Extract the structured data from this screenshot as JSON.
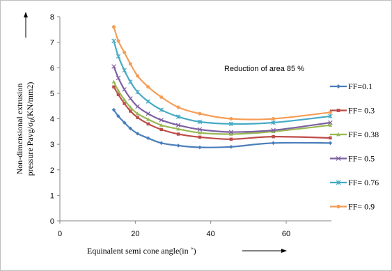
{
  "chart_data": {
    "type": "line",
    "annotation": "Reduction of area 85 %",
    "xlabel": "Equinalent semi cone angle(in ˚)",
    "ylabel_line1": "Non-dimensional extrusion",
    "ylabel_line2": "pressure Pavg/σ",
    "ylabel_sub": "0",
    "ylabel_tail": "(KN/mm2)",
    "xlim": [
      0,
      72
    ],
    "ylim": [
      0,
      8
    ],
    "xticks": [
      0,
      20,
      40,
      60
    ],
    "yticks": [
      0,
      1,
      2,
      3,
      4,
      5,
      6,
      7,
      8
    ],
    "grid": false,
    "legend_position": "right",
    "x": [
      14.3,
      15.5,
      17.1,
      18.7,
      20.6,
      23.4,
      26.9,
      31.4,
      37.1,
      45.4,
      56.6,
      71.7
    ],
    "series": [
      {
        "name": "FF=0.1",
        "color": "#4a7ebb",
        "marker": "diamond",
        "values": [
          4.35,
          4.1,
          3.85,
          3.62,
          3.42,
          3.24,
          3.05,
          2.95,
          2.88,
          2.9,
          3.05,
          3.05
        ]
      },
      {
        "name": "FF= 0.3",
        "color": "#be4b48",
        "marker": "square",
        "values": [
          5.25,
          4.95,
          4.6,
          4.3,
          4.05,
          3.8,
          3.58,
          3.4,
          3.28,
          3.2,
          3.3,
          3.25
        ]
      },
      {
        "name": "FF= 0.38",
        "color": "#98b954",
        "marker": "triangle",
        "values": [
          5.45,
          5.1,
          4.75,
          4.45,
          4.2,
          3.98,
          3.75,
          3.6,
          3.45,
          3.4,
          3.5,
          3.75
        ]
      },
      {
        "name": "FF= 0.5",
        "color": "#7d60a0",
        "marker": "x",
        "values": [
          6.05,
          5.6,
          5.15,
          4.8,
          4.48,
          4.2,
          3.95,
          3.75,
          3.58,
          3.48,
          3.55,
          3.85
        ]
      },
      {
        "name": "FF= 0.76",
        "color": "#46aac5",
        "marker": "star",
        "values": [
          7.05,
          6.45,
          5.9,
          5.45,
          5.05,
          4.68,
          4.35,
          4.08,
          3.88,
          3.8,
          3.85,
          4.1
        ]
      },
      {
        "name": "FF= 0.9",
        "color": "#f59d56",
        "marker": "circle",
        "values": [
          7.6,
          7.05,
          6.6,
          6.15,
          5.68,
          5.25,
          4.85,
          4.45,
          4.2,
          4.0,
          4.0,
          4.25
        ]
      }
    ]
  }
}
